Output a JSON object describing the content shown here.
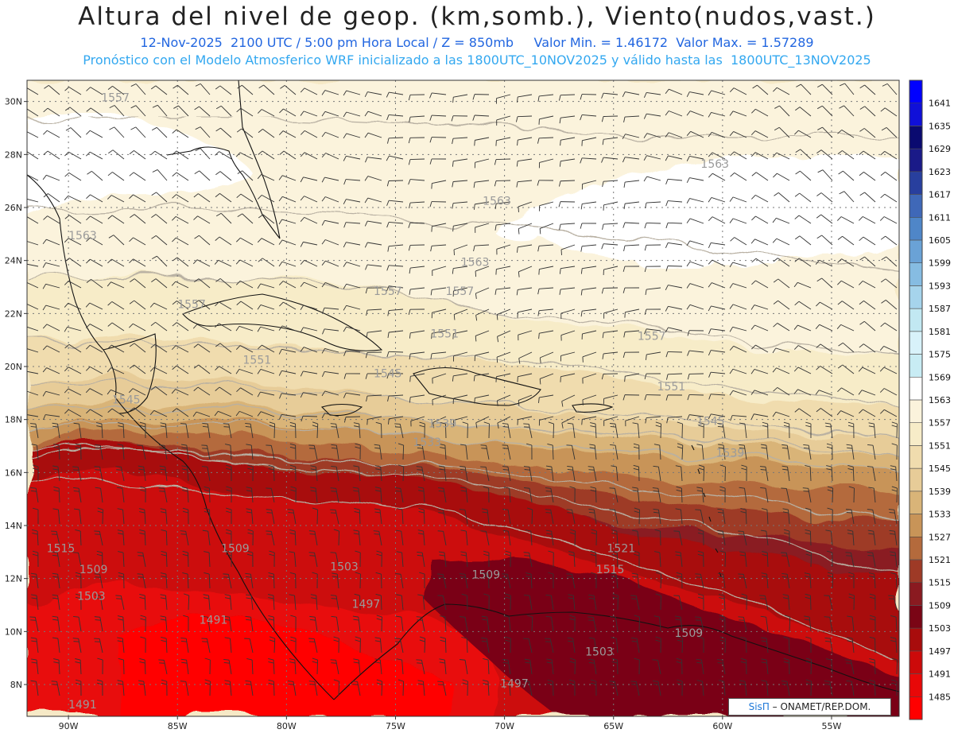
{
  "header": {
    "title": "Altura del nivel de geop. (km,somb.), Viento(nudos,vast.)",
    "subtitle": "12-Nov-2025  2100 UTC / 5:00 pm Hora Local / Z = 850mb     Valor Min. = 1.46172  Valor Max. = 1.57289",
    "subtitle2": "Pronóstico con el Modelo Atmosferico WRF inicializado a las 1800UTC_10NOV2025 y válido hasta las  1800UTC_13NOV2025"
  },
  "map": {
    "lat_ticks": [
      "30N",
      "28N",
      "26N",
      "24N",
      "22N",
      "20N",
      "18N",
      "16N",
      "14N",
      "12N",
      "10N",
      "8N"
    ],
    "lat_values": [
      30,
      28,
      26,
      24,
      22,
      20,
      18,
      16,
      14,
      12,
      10,
      8
    ],
    "lon_ticks": [
      "90W",
      "85W",
      "80W",
      "75W",
      "70W",
      "65W",
      "60W",
      "55W"
    ],
    "lon_values": [
      -90,
      -85,
      -80,
      -75,
      -70,
      -65,
      -60,
      -55
    ],
    "extent": {
      "lon_min": -91.9,
      "lon_max": -51.9,
      "lat_min": 6.8,
      "lat_max": 30.8
    },
    "contour_labels": [
      {
        "text": "1557",
        "lon": -88.5,
        "lat": 30.0
      },
      {
        "text": "1563",
        "lon": -61.0,
        "lat": 27.5
      },
      {
        "text": "1563",
        "lon": -71.0,
        "lat": 26.1
      },
      {
        "text": "1563",
        "lon": -90.0,
        "lat": 24.8
      },
      {
        "text": "1563",
        "lon": -72.0,
        "lat": 23.8
      },
      {
        "text": "1557",
        "lon": -85.0,
        "lat": 22.2
      },
      {
        "text": "1557",
        "lon": -76.0,
        "lat": 22.7
      },
      {
        "text": "1557",
        "lon": -72.7,
        "lat": 22.7
      },
      {
        "text": "1551",
        "lon": -73.4,
        "lat": 21.1
      },
      {
        "text": "1557",
        "lon": -63.9,
        "lat": 21.0
      },
      {
        "text": "1551",
        "lon": -82.0,
        "lat": 20.1
      },
      {
        "text": "1545",
        "lon": -76.0,
        "lat": 19.6
      },
      {
        "text": "1551",
        "lon": -63.0,
        "lat": 19.1
      },
      {
        "text": "1545",
        "lon": -88.0,
        "lat": 18.6
      },
      {
        "text": "1539",
        "lon": -73.5,
        "lat": 17.7
      },
      {
        "text": "1545",
        "lon": -61.2,
        "lat": 17.8
      },
      {
        "text": "1533",
        "lon": -74.2,
        "lat": 17.0
      },
      {
        "text": "1539",
        "lon": -60.3,
        "lat": 16.6
      },
      {
        "text": "1515",
        "lon": -91.0,
        "lat": 13.0
      },
      {
        "text": "1509",
        "lon": -89.5,
        "lat": 12.2
      },
      {
        "text": "1509",
        "lon": -83.0,
        "lat": 13.0
      },
      {
        "text": "1503",
        "lon": -78.0,
        "lat": 12.3
      },
      {
        "text": "1509",
        "lon": -71.5,
        "lat": 12.0
      },
      {
        "text": "1521",
        "lon": -65.3,
        "lat": 13.0
      },
      {
        "text": "1515",
        "lon": -65.8,
        "lat": 12.2
      },
      {
        "text": "1503",
        "lon": -89.6,
        "lat": 11.2
      },
      {
        "text": "1497",
        "lon": -77.0,
        "lat": 10.9
      },
      {
        "text": "1491",
        "lon": -84.0,
        "lat": 10.3
      },
      {
        "text": "1509",
        "lon": -62.2,
        "lat": 9.8
      },
      {
        "text": "1503",
        "lon": -66.3,
        "lat": 9.1
      },
      {
        "text": "1497",
        "lon": -70.2,
        "lat": 7.9
      },
      {
        "text": "1491",
        "lon": -90.0,
        "lat": 7.1
      }
    ]
  },
  "colorbar": {
    "levels": [
      "1485",
      "1491",
      "1497",
      "1503",
      "1509",
      "1515",
      "1521",
      "1527",
      "1533",
      "1539",
      "1545",
      "1551",
      "1557",
      "1563",
      "1569",
      "1575",
      "1581",
      "1587",
      "1593",
      "1599",
      "1605",
      "1611",
      "1617",
      "1623",
      "1629",
      "1635",
      "1641"
    ],
    "colors": [
      "#ff0000",
      "#e80808",
      "#cc0a0a",
      "#a80c0c",
      "#7a0515",
      "#8a1a20",
      "#9e3a26",
      "#b46a3c",
      "#c89458",
      "#d9b478",
      "#e7cc98",
      "#f0dcae",
      "#f7ecc8",
      "#fbf3dc",
      "#ffffff",
      "#c8ecf4",
      "#d8f2fa",
      "#c2e8f2",
      "#a6d4ec",
      "#86bce2",
      "#6aa2d6",
      "#4f86c8",
      "#3f68b8",
      "#283f9e",
      "#1a1a88",
      "#0a0a70",
      "#1010d8",
      "#0000ff"
    ]
  },
  "credit": {
    "logo": "SisΠ",
    "text": " – ONAMET/REP.DOM."
  }
}
